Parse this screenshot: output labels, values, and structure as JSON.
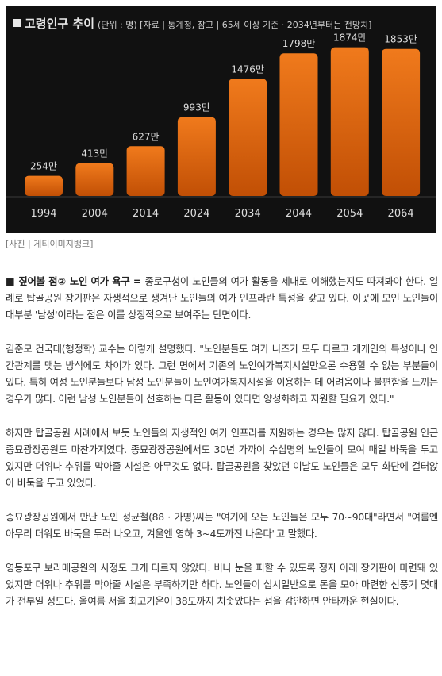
{
  "chart_data": {
    "type": "bar",
    "title": "고령인구 추이",
    "subtitle": "(단위 : 명) [자료 | 통계청, 참고 | 65세 이상 기준 · 2034년부터는 전망치]",
    "categories": [
      "1994",
      "2004",
      "2014",
      "2024",
      "2034",
      "2044",
      "2054",
      "2064"
    ],
    "values": [
      254,
      413,
      627,
      993,
      1476,
      1798,
      1874,
      1853
    ],
    "value_labels": [
      "254만",
      "413만",
      "627만",
      "993만",
      "1476만",
      "1798만",
      "1874만",
      "1853만"
    ],
    "ylim": [
      0,
      2000
    ],
    "grid": false,
    "legend": "none",
    "colors": {
      "background": "#111111",
      "bar_top": "#f07a1c",
      "bar_bottom": "#c14f05",
      "label": "#dddddd"
    }
  },
  "caption": "[사진 | 게티이미지뱅크]",
  "article": {
    "p1_lead": "■ 짚어볼 점② 노인 여가 욕구 = ",
    "p1_body": "종로구청이 노인들의 여가 활동을 제대로 이해했는지도 따져봐야 한다. 일례로 탑골공원 장기판은 자생적으로 생겨난 노인들의 여가 인프라란 특성을 갖고 있다. 이곳에 모인 노인들이 대부분 '남성'이라는 점은 이를 상징적으로 보여주는 단면이다.",
    "p2": "김준모 건국대(행정학) 교수는 이렇게 설명했다. \"노인분들도 여가 니즈가 모두 다르고 개개인의 특성이나 인간관계를 맺는 방식에도 차이가 있다. 그런 면에서 기존의 노인여가복지시설만으론 수용할 수 없는 부분들이 있다. 특히 여성 노인분들보다 남성 노인분들이 노인여가복지시설을 이용하는 데 어려움이나 불편함을 느끼는 경우가 많다. 이런 남성 노인분들이 선호하는 다른 활동이 있다면 양성화하고 지원할 필요가 있다.\"",
    "p3": "하지만 탑골공원 사례에서 보듯 노인들의 자생적인 여가 인프라를 지원하는 경우는 많지 않다. 탑골공원 인근 종묘광장공원도 마찬가지였다. 종묘광장공원에서도 30년 가까이 수십명의 노인들이 모여 매일 바둑을 두고 있지만 더위나 추위를 막아줄 시설은 아무것도 없다. 탑골공원을 찾았던 이날도 노인들은 모두 화단에 걸터앉아 바둑을 두고 있었다.",
    "p4": "종묘광장공원에서 만난 노인 정균철(88 · 가명)씨는 \"여기에 오는 노인들은 모두 70~90대\"라면서 \"여름엔 아무리 더워도 바둑을 두러 나오고, 겨울엔 영하 3~4도까진 나온다\"고 말했다.",
    "p5": "영등포구 보라매공원의 사정도 크게 다르지 않았다. 비나 눈을 피할 수 있도록 정자 아래 장기판이 마련돼 있었지만 더위나 추위를 막아줄 시설은 부족하기만 하다. 노인들이 십시일반으로 돈을 모아 마련한 선풍기 몇대가 전부일 정도다. 올여름 서울 최고기온이 38도까지 치솟았다는 점을 감안하면 안타까운 현실이다."
  }
}
